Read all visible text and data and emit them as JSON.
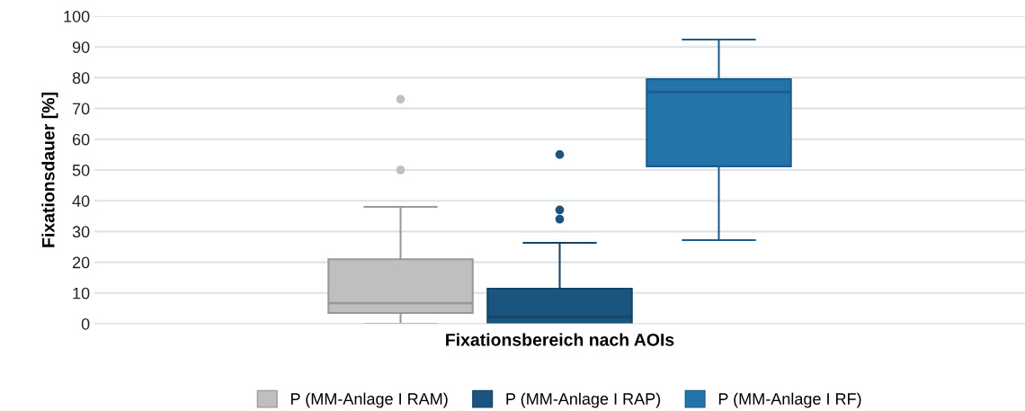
{
  "chart_data": {
    "type": "box",
    "xlabel": "Fixationsbereich nach AOIs",
    "ylabel": "Fixationsdauer [%]",
    "categories": [
      null
    ],
    "ylim": [
      0,
      100
    ],
    "yticks": [
      0,
      10,
      20,
      30,
      40,
      50,
      60,
      70,
      80,
      90,
      100
    ],
    "grid": "y",
    "legend": "bottom",
    "series": [
      {
        "name": "P (MM-Anlage I RAM)",
        "color": "#bfbfbf",
        "boxes": [
          {
            "low": 0,
            "q1": 3.5,
            "median": 6.7,
            "q3": 21,
            "high": 38,
            "outliers": [
              50,
              73
            ]
          }
        ]
      },
      {
        "name": "P (MM-Anlage I RAP)",
        "color": "#1b557f",
        "boxes": [
          {
            "low": 0,
            "q1": 0,
            "median": 2.3,
            "q3": 11.4,
            "high": 26.3,
            "outliers": [
              34,
              37,
              55
            ]
          }
        ]
      },
      {
        "name": "P (MM-Anlage I RF)",
        "color": "#2474ac",
        "boxes": [
          {
            "low": 27.2,
            "q1": 51.2,
            "median": 75.4,
            "q3": 79.5,
            "high": 92.4
          }
        ]
      }
    ]
  }
}
